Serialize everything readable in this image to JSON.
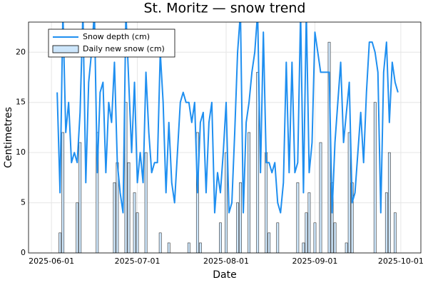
{
  "chart_data": {
    "type": "line-bar",
    "title": "St. Moritz — snow trend",
    "x_label": "Date",
    "y_label": "Centimetres",
    "x": [
      "2025-06-03",
      "2025-06-04",
      "2025-06-05",
      "2025-06-06",
      "2025-06-07",
      "2025-06-08",
      "2025-06-09",
      "2025-06-10",
      "2025-06-11",
      "2025-06-12",
      "2025-06-13",
      "2025-06-14",
      "2025-06-15",
      "2025-06-16",
      "2025-06-17",
      "2025-06-18",
      "2025-06-19",
      "2025-06-20",
      "2025-06-21",
      "2025-06-22",
      "2025-06-23",
      "2025-06-24",
      "2025-06-25",
      "2025-06-26",
      "2025-06-27",
      "2025-06-28",
      "2025-06-29",
      "2025-06-30",
      "2025-07-01",
      "2025-07-02",
      "2025-07-03",
      "2025-07-04",
      "2025-07-05",
      "2025-07-06",
      "2025-07-07",
      "2025-07-08",
      "2025-07-09",
      "2025-07-10",
      "2025-07-11",
      "2025-07-12",
      "2025-07-13",
      "2025-07-14",
      "2025-07-15",
      "2025-07-16",
      "2025-07-17",
      "2025-07-18",
      "2025-07-19",
      "2025-07-20",
      "2025-07-21",
      "2025-07-22",
      "2025-07-23",
      "2025-07-24",
      "2025-07-25",
      "2025-07-26",
      "2025-07-27",
      "2025-07-28",
      "2025-07-29",
      "2025-07-30",
      "2025-07-31",
      "2025-08-01",
      "2025-08-02",
      "2025-08-03",
      "2025-08-04",
      "2025-08-05",
      "2025-08-06",
      "2025-08-07",
      "2025-08-08",
      "2025-08-09",
      "2025-08-10",
      "2025-08-11",
      "2025-08-12",
      "2025-08-13",
      "2025-08-14",
      "2025-08-15",
      "2025-08-16",
      "2025-08-17",
      "2025-08-18",
      "2025-08-19",
      "2025-08-20",
      "2025-08-21",
      "2025-08-22",
      "2025-08-23",
      "2025-08-24",
      "2025-08-25",
      "2025-08-26",
      "2025-08-27",
      "2025-08-28",
      "2025-08-29",
      "2025-08-30",
      "2025-08-31",
      "2025-09-01",
      "2025-09-02",
      "2025-09-03",
      "2025-09-04",
      "2025-09-05",
      "2025-09-06",
      "2025-09-07",
      "2025-09-08",
      "2025-09-09",
      "2025-09-10",
      "2025-09-11",
      "2025-09-12",
      "2025-09-13",
      "2025-09-14",
      "2025-09-15",
      "2025-09-16",
      "2025-09-17",
      "2025-09-18",
      "2025-09-19",
      "2025-09-20",
      "2025-09-21",
      "2025-09-22",
      "2025-09-23",
      "2025-09-24",
      "2025-09-25",
      "2025-09-26",
      "2025-09-27",
      "2025-09-28",
      "2025-09-29",
      "2025-09-30"
    ],
    "series": [
      {
        "name": "Snow depth (cm)",
        "kind": "line",
        "color": "#1f8ff0",
        "values": [
          16,
          6,
          24,
          12,
          15,
          9,
          10,
          9,
          14,
          24,
          7,
          17,
          20,
          24,
          8,
          16,
          17,
          8,
          15,
          13,
          19,
          9,
          6,
          4,
          24,
          17,
          10,
          17,
          7,
          10,
          7,
          18,
          12,
          8,
          9,
          9,
          20,
          15,
          6,
          13,
          7,
          5,
          10,
          15,
          16,
          15,
          15,
          13,
          15,
          6,
          13,
          14,
          6,
          13,
          15,
          4,
          8,
          6,
          10,
          15,
          4,
          5,
          12,
          20,
          24,
          4,
          13,
          15,
          18,
          20,
          24,
          8,
          22,
          9,
          9,
          8,
          9,
          5,
          4,
          7,
          19,
          8,
          19,
          8,
          9,
          24,
          6,
          24,
          8,
          11,
          22,
          20,
          18,
          18,
          18,
          18,
          4,
          11,
          15,
          19,
          11,
          14,
          17,
          5,
          6,
          10,
          14,
          9,
          16,
          21,
          21,
          20,
          18,
          4,
          18,
          21,
          13,
          19,
          17,
          16
        ]
      },
      {
        "name": "Daily new snow (cm)",
        "kind": "bar",
        "color": "#cde6fb",
        "values": [
          0,
          2,
          12,
          0,
          0,
          0,
          0,
          5,
          11,
          0,
          0,
          0,
          0,
          0,
          12,
          0,
          0,
          0,
          0,
          0,
          7,
          9,
          0,
          0,
          15,
          9,
          0,
          6,
          4,
          0,
          0,
          10,
          0,
          0,
          0,
          0,
          2,
          0,
          0,
          1,
          0,
          0,
          0,
          0,
          0,
          0,
          1,
          0,
          0,
          12,
          1,
          0,
          0,
          0,
          0,
          0,
          0,
          3,
          0,
          10,
          0,
          0,
          0,
          5,
          7,
          0,
          0,
          12,
          0,
          0,
          18,
          0,
          0,
          10,
          2,
          0,
          0,
          3,
          0,
          0,
          0,
          0,
          0,
          0,
          7,
          0,
          1,
          4,
          6,
          0,
          3,
          0,
          11,
          0,
          0,
          21,
          7,
          3,
          0,
          0,
          0,
          1,
          12,
          7,
          0,
          0,
          0,
          0,
          0,
          0,
          0,
          15,
          0,
          0,
          0,
          6,
          10,
          0,
          4,
          0
        ]
      }
    ],
    "xlim": [
      "2025-05-24",
      "2025-10-08"
    ],
    "xticks": [
      "2025-06-01",
      "2025-07-01",
      "2025-08-01",
      "2025-09-01",
      "2025-10-01"
    ],
    "ylim": [
      0,
      23
    ],
    "yticks": [
      0,
      5,
      10,
      15,
      20
    ],
    "grid": true,
    "legend": "top-left"
  }
}
